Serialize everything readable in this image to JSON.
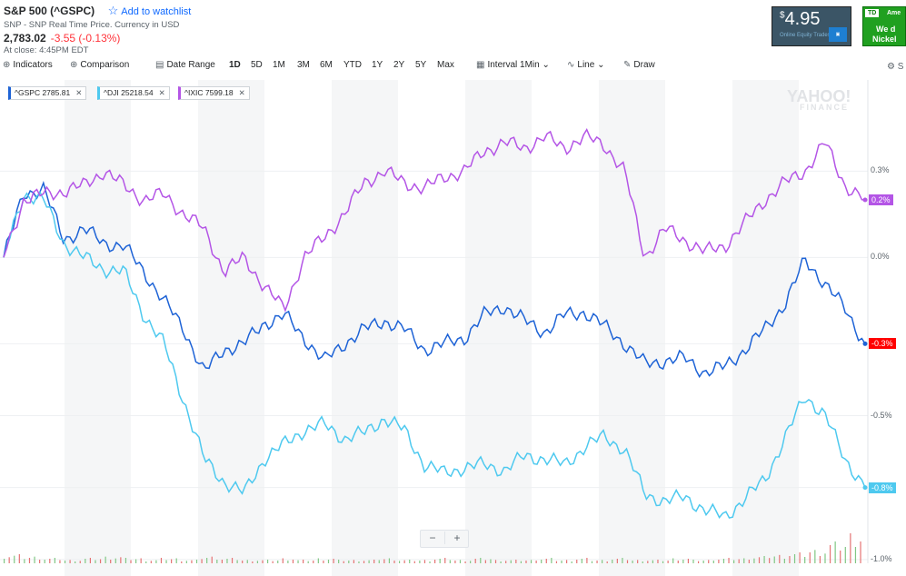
{
  "header": {
    "title": "S&P 500 (^GSPC)",
    "watchlist_label": "Add to watchlist",
    "subtitle": "SNP - SNP Real Time Price. Currency in USD",
    "price": "2,783.02",
    "change": "-3.55 (-0.13%)",
    "close_time": "At close: 4:45PM EDT"
  },
  "ads": {
    "ad1_price": "4.95",
    "ad1_currency": "$",
    "ad1_text": "Online Equity Trades",
    "ad2_brand": "TD",
    "ad2_text1": "Ame",
    "ad2_line1": "We d",
    "ad2_line2": "Nickel an"
  },
  "toolbar": {
    "indicators": "Indicators",
    "comparison": "Comparison",
    "date_range": "Date Range",
    "ranges": [
      "1D",
      "5D",
      "1M",
      "3M",
      "6M",
      "YTD",
      "1Y",
      "2Y",
      "5Y",
      "Max"
    ],
    "selected_range": "1D",
    "interval": "Interval",
    "interval_value": "1Min",
    "chart_type": "Line",
    "draw": "Draw",
    "settings": "S"
  },
  "watermark": {
    "line1": "YAHOO!",
    "line2": "FINANCE"
  },
  "zoom": {
    "minus": "−",
    "plus": "+"
  },
  "chart_data": {
    "type": "line",
    "yaxis_labels": [
      "0.3%",
      "0.0%",
      "-0.3%",
      "-0.5%",
      "-0.8%",
      "-1.0%"
    ],
    "ylim": [
      -1.0,
      0.5
    ],
    "series": [
      {
        "name": "^GSPC",
        "value": "2785.81",
        "color": "#1e63d6",
        "last_tag": "-0.3%",
        "tag_color": "#ff0000",
        "values": [
          0.0,
          0.22,
          0.24,
          0.06,
          0.1,
          0.05,
          0.04,
          -0.05,
          -0.15,
          -0.25,
          -0.4,
          -0.32,
          -0.3,
          -0.23,
          -0.2,
          -0.28,
          -0.36,
          -0.3,
          -0.25,
          -0.22,
          -0.25,
          -0.32,
          -0.3,
          -0.28,
          -0.2,
          -0.17,
          -0.22,
          -0.26,
          -0.2,
          -0.19,
          -0.24,
          -0.3,
          -0.37,
          -0.36,
          -0.35,
          -0.4,
          -0.38,
          -0.32,
          -0.25,
          -0.16,
          -0.01,
          -0.09,
          -0.18,
          -0.3
        ]
      },
      {
        "name": "^DJI",
        "value": "25218.54",
        "color": "#4ec9ef",
        "last_tag": "-0.8%",
        "tag_color": "#4ec9ef",
        "values": [
          0.0,
          0.22,
          0.2,
          0.05,
          0.0,
          -0.04,
          -0.05,
          -0.2,
          -0.3,
          -0.5,
          -0.7,
          -0.78,
          -0.82,
          -0.7,
          -0.65,
          -0.6,
          -0.58,
          -0.63,
          -0.61,
          -0.56,
          -0.6,
          -0.72,
          -0.75,
          -0.73,
          -0.72,
          -0.74,
          -0.69,
          -0.7,
          -0.72,
          -0.66,
          -0.62,
          -0.67,
          -0.82,
          -0.85,
          -0.83,
          -0.88,
          -0.9,
          -0.84,
          -0.77,
          -0.63,
          -0.48,
          -0.55,
          -0.7,
          -0.8
        ]
      },
      {
        "name": "^IXIC",
        "value": "7599.18",
        "color": "#b455e6",
        "last_tag": "0.2%",
        "tag_color": "#b455e6",
        "values": [
          0.0,
          0.2,
          0.22,
          0.23,
          0.25,
          0.3,
          0.25,
          0.2,
          0.22,
          0.15,
          0.1,
          -0.05,
          0.0,
          -0.1,
          -0.18,
          0.0,
          0.07,
          0.15,
          0.26,
          0.3,
          0.26,
          0.24,
          0.28,
          0.3,
          0.37,
          0.4,
          0.38,
          0.42,
          0.38,
          0.42,
          0.39,
          0.3,
          0.0,
          0.1,
          0.06,
          0.02,
          0.04,
          0.12,
          0.2,
          0.26,
          0.3,
          0.4,
          0.25,
          0.2
        ]
      }
    ],
    "volume": [
      5,
      4,
      3,
      2,
      3,
      4,
      3,
      2,
      3,
      2,
      4,
      3,
      2,
      2,
      3,
      2,
      3,
      2,
      2,
      3,
      2,
      2,
      3,
      2,
      3,
      2,
      2,
      3,
      2,
      3,
      2,
      3,
      2,
      2,
      3,
      2,
      3,
      3,
      4,
      5,
      6,
      8,
      12,
      18
    ]
  }
}
